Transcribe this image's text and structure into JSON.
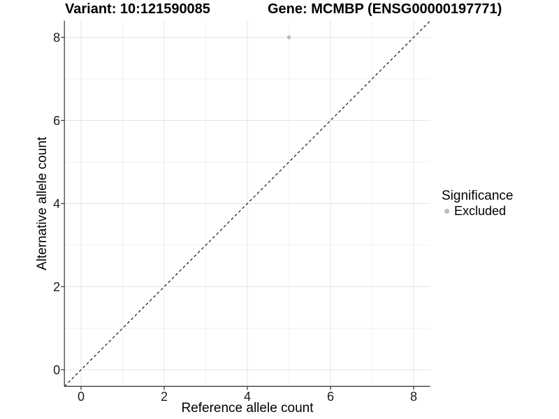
{
  "chart_data": {
    "type": "scatter",
    "titles": {
      "variant": "Variant: 10:121590085",
      "gene": "Gene: MCMBP (ENSG00000197771)"
    },
    "xlabel": "Reference allele count",
    "ylabel": "Alternative allele count",
    "xlim": [
      -0.4,
      8.4
    ],
    "ylim": [
      -0.4,
      8.4
    ],
    "x_major_ticks": [
      0,
      2,
      4,
      6,
      8
    ],
    "y_major_ticks": [
      0,
      2,
      4,
      6,
      8
    ],
    "x_minor_gridlines": [
      1,
      3,
      5,
      7
    ],
    "y_minor_gridlines": [
      1,
      3,
      5,
      7
    ],
    "grid": "major+minor",
    "identity_line": {
      "type": "abline",
      "slope": 1,
      "intercept": 0,
      "style": "dashed",
      "color": "#000000"
    },
    "series": [
      {
        "name": "Excluded",
        "color": "#bdbdbd",
        "points": [
          {
            "x": 5,
            "y": 8
          }
        ]
      }
    ],
    "legend": {
      "title": "Significance",
      "position": "right",
      "items": [
        {
          "label": "Excluded",
          "color": "#bdbdbd"
        }
      ]
    },
    "colors": {
      "grid_major": "#e5e5e5",
      "grid_minor": "#f2f2f2",
      "axis_line": "#3f3f3f",
      "tick_text": "#1a1a1a",
      "title_text": "#000000"
    }
  }
}
